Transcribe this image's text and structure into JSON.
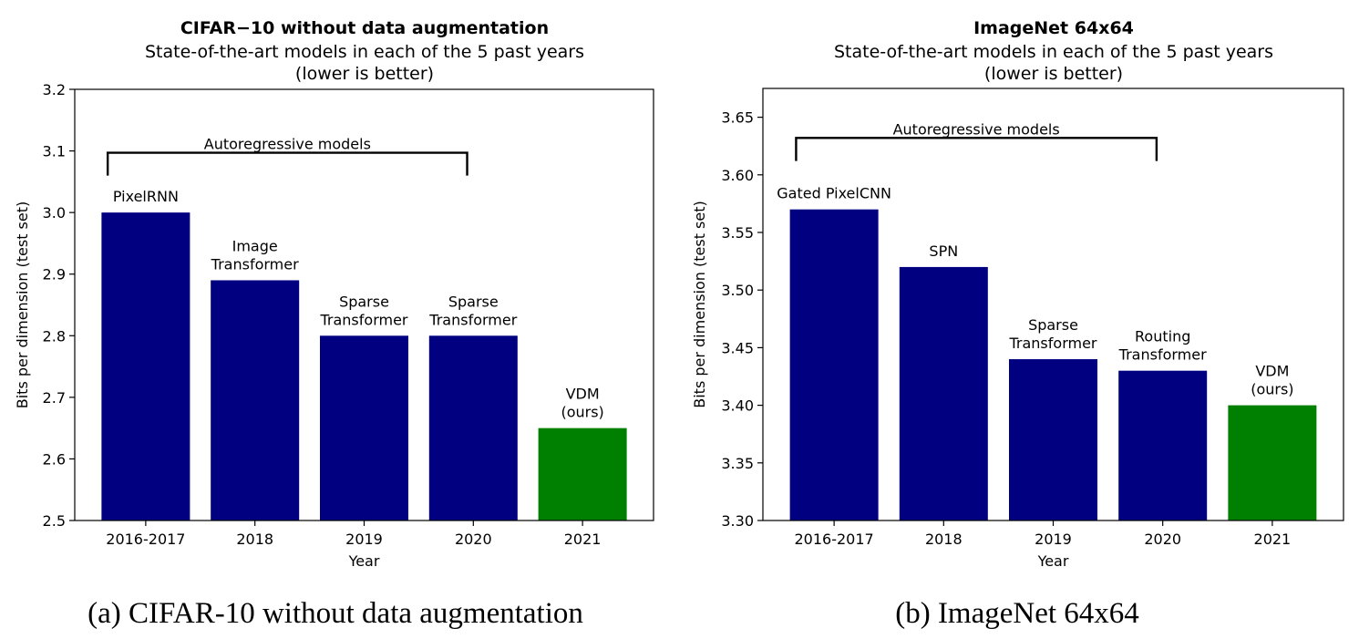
{
  "chart_data": [
    {
      "type": "bar",
      "title": "CIFAR−10 without data augmentation",
      "subtitle_lines": [
        "State-of-the-art models in each of the 5 past years",
        "(lower is better)"
      ],
      "xlabel": "Year",
      "ylabel": "Bits per dimension (test set)",
      "categories": [
        "2016-2017",
        "2018",
        "2019",
        "2020",
        "2021"
      ],
      "values": [
        3.0,
        2.89,
        2.8,
        2.8,
        2.65
      ],
      "bar_labels": [
        [
          "PixelRNN"
        ],
        [
          "Image",
          "Transformer"
        ],
        [
          "Sparse",
          "Transformer"
        ],
        [
          "Sparse",
          "Transformer"
        ],
        [
          "VDM",
          "(ours)"
        ]
      ],
      "bar_colors": [
        "#000080",
        "#000080",
        "#000080",
        "#000080",
        "#008000"
      ],
      "ylim": [
        2.5,
        3.2
      ],
      "yticks": [
        "2.5",
        "2.6",
        "2.7",
        "2.8",
        "2.9",
        "3.0",
        "3.1",
        "3.2"
      ],
      "bracket": {
        "label": "Autoregressive models",
        "from_category": 0,
        "to_category": 3,
        "y": 3.097,
        "tick_bottom": 3.06
      },
      "grid": false,
      "legend": "none"
    },
    {
      "type": "bar",
      "title": "ImageNet 64x64",
      "subtitle_lines": [
        "State-of-the-art models in each of the 5 past years",
        "(lower is better)"
      ],
      "xlabel": "Year",
      "ylabel": "Bits per dimension (test set)",
      "categories": [
        "2016-2017",
        "2018",
        "2019",
        "2020",
        "2021"
      ],
      "values": [
        3.57,
        3.52,
        3.44,
        3.43,
        3.4
      ],
      "bar_labels": [
        [
          "Gated PixelCNN"
        ],
        [
          "SPN"
        ],
        [
          "Sparse",
          "Transformer"
        ],
        [
          "Routing",
          "Transformer"
        ],
        [
          "VDM",
          "(ours)"
        ]
      ],
      "bar_colors": [
        "#000080",
        "#000080",
        "#000080",
        "#000080",
        "#008000"
      ],
      "ylim": [
        3.3,
        3.675
      ],
      "yticks": [
        "3.30",
        "3.35",
        "3.40",
        "3.45",
        "3.50",
        "3.55",
        "3.60",
        "3.65"
      ],
      "bracket": {
        "label": "Autoregressive models",
        "from_category": 0,
        "to_category": 3,
        "y": 3.632,
        "tick_bottom": 3.612
      },
      "grid": false,
      "legend": "none"
    }
  ],
  "captions": [
    "(a) CIFAR-10 without data augmentation",
    "(b) ImageNet 64x64"
  ]
}
